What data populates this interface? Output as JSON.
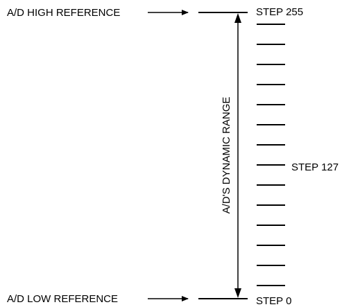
{
  "diagram": {
    "high_reference_label": "A/D HIGH REFERENCE",
    "low_reference_label": "A/D LOW REFERENCE",
    "dynamic_range_label": "A/D'S DYNAMIC RANGE",
    "step_top_label": "STEP 255",
    "step_middle_label": "STEP 127",
    "step_bottom_label": "STEP 0",
    "step_tick_count": 14,
    "line_color": "#000000",
    "text_color": "#000000"
  }
}
